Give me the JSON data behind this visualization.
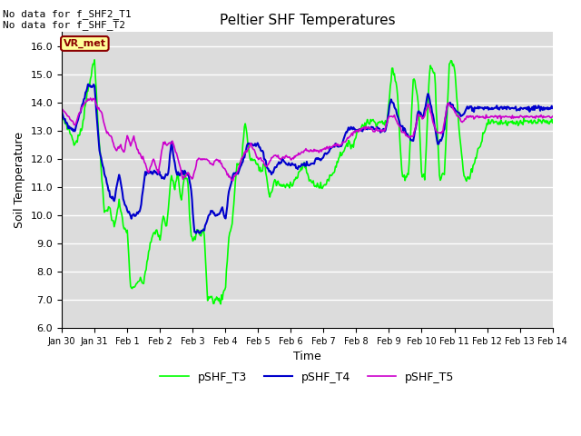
{
  "title": "Peltier SHF Temperatures",
  "xlabel": "Time",
  "ylabel": "Soil Temperature",
  "text_top_left": "No data for f_SHF2_T1\nNo data for f_SHF_T2",
  "annotation_label": "VR_met",
  "ylim": [
    6.0,
    16.5
  ],
  "yticks": [
    6.0,
    7.0,
    8.0,
    9.0,
    10.0,
    11.0,
    12.0,
    13.0,
    14.0,
    15.0,
    16.0
  ],
  "xtick_labels": [
    "Jan 30",
    "Jan 31",
    "Feb 1",
    "Feb 2",
    "Feb 3",
    "Feb 4",
    "Feb 5",
    "Feb 6",
    "Feb 7",
    "Feb 8",
    "Feb 9",
    "Feb 10",
    "Feb 11",
    "Feb 12",
    "Feb 13",
    "Feb 14"
  ],
  "legend_entries": [
    "pSHF_T3",
    "pSHF_T4",
    "pSHF_T5"
  ],
  "colors": {
    "T3": "#00FF00",
    "T4": "#0000CC",
    "T5": "#CC00CC"
  },
  "bg_color": "#DCDCDC",
  "annotation_bg": "#FFFF99",
  "annotation_border": "#8B0000",
  "annotation_text_color": "#8B0000",
  "t3_waypoints": [
    [
      0.0,
      13.5
    ],
    [
      0.2,
      13.1
    ],
    [
      0.4,
      12.5
    ],
    [
      0.6,
      13.0
    ],
    [
      0.8,
      14.5
    ],
    [
      1.0,
      15.5
    ],
    [
      1.15,
      12.5
    ],
    [
      1.3,
      10.1
    ],
    [
      1.45,
      10.3
    ],
    [
      1.6,
      9.6
    ],
    [
      1.75,
      10.5
    ],
    [
      1.9,
      9.5
    ],
    [
      2.0,
      9.5
    ],
    [
      2.1,
      7.5
    ],
    [
      2.2,
      7.35
    ],
    [
      2.35,
      7.7
    ],
    [
      2.5,
      7.6
    ],
    [
      2.6,
      8.3
    ],
    [
      2.75,
      9.2
    ],
    [
      2.9,
      9.5
    ],
    [
      3.0,
      9.1
    ],
    [
      3.1,
      10.0
    ],
    [
      3.2,
      9.5
    ],
    [
      3.35,
      11.5
    ],
    [
      3.45,
      11.0
    ],
    [
      3.55,
      11.5
    ],
    [
      3.65,
      10.5
    ],
    [
      3.75,
      11.5
    ],
    [
      3.85,
      11.2
    ],
    [
      3.95,
      9.2
    ],
    [
      4.05,
      9.1
    ],
    [
      4.15,
      9.5
    ],
    [
      4.25,
      9.3
    ],
    [
      4.35,
      9.5
    ],
    [
      4.45,
      7.05
    ],
    [
      4.55,
      7.1
    ],
    [
      4.65,
      6.95
    ],
    [
      4.75,
      7.05
    ],
    [
      4.85,
      6.95
    ],
    [
      5.0,
      7.4
    ],
    [
      5.1,
      9.2
    ],
    [
      5.2,
      9.6
    ],
    [
      5.35,
      11.8
    ],
    [
      5.5,
      11.9
    ],
    [
      5.6,
      13.4
    ],
    [
      5.75,
      12.0
    ],
    [
      5.9,
      11.9
    ],
    [
      6.0,
      11.8
    ],
    [
      6.1,
      11.5
    ],
    [
      6.2,
      11.9
    ],
    [
      6.35,
      10.6
    ],
    [
      6.5,
      11.2
    ],
    [
      6.65,
      11.1
    ],
    [
      6.8,
      11.0
    ],
    [
      6.95,
      11.1
    ],
    [
      7.1,
      11.2
    ],
    [
      7.25,
      11.5
    ],
    [
      7.4,
      11.8
    ],
    [
      7.5,
      11.5
    ],
    [
      7.6,
      11.2
    ],
    [
      7.75,
      11.1
    ],
    [
      7.9,
      11.0
    ],
    [
      8.0,
      11.0
    ],
    [
      8.15,
      11.3
    ],
    [
      8.3,
      11.5
    ],
    [
      8.45,
      12.0
    ],
    [
      8.6,
      12.3
    ],
    [
      8.75,
      12.5
    ],
    [
      8.9,
      12.5
    ],
    [
      9.05,
      13.0
    ],
    [
      9.2,
      13.2
    ],
    [
      9.35,
      13.3
    ],
    [
      9.5,
      13.35
    ],
    [
      9.65,
      13.3
    ],
    [
      9.8,
      13.3
    ],
    [
      9.95,
      13.3
    ],
    [
      10.1,
      15.3
    ],
    [
      10.25,
      14.5
    ],
    [
      10.4,
      11.4
    ],
    [
      10.5,
      11.4
    ],
    [
      10.6,
      11.5
    ],
    [
      10.75,
      15.0
    ],
    [
      10.9,
      14.0
    ],
    [
      11.0,
      11.4
    ],
    [
      11.1,
      11.3
    ],
    [
      11.25,
      15.4
    ],
    [
      11.4,
      15.0
    ],
    [
      11.55,
      11.3
    ],
    [
      11.7,
      11.5
    ],
    [
      11.85,
      15.5
    ],
    [
      12.0,
      15.3
    ],
    [
      12.15,
      13.0
    ],
    [
      12.3,
      11.3
    ],
    [
      12.45,
      11.3
    ],
    [
      13.0,
      13.3
    ],
    [
      15.0,
      13.3
    ]
  ],
  "t4_waypoints": [
    [
      0.0,
      13.7
    ],
    [
      0.2,
      13.1
    ],
    [
      0.4,
      13.0
    ],
    [
      0.6,
      13.8
    ],
    [
      0.8,
      14.6
    ],
    [
      1.0,
      14.6
    ],
    [
      1.15,
      12.3
    ],
    [
      1.3,
      11.5
    ],
    [
      1.45,
      10.8
    ],
    [
      1.6,
      10.5
    ],
    [
      1.75,
      11.5
    ],
    [
      1.9,
      10.5
    ],
    [
      2.0,
      10.2
    ],
    [
      2.1,
      10.0
    ],
    [
      2.25,
      10.0
    ],
    [
      2.4,
      10.2
    ],
    [
      2.55,
      11.5
    ],
    [
      2.7,
      11.5
    ],
    [
      2.85,
      11.5
    ],
    [
      3.0,
      11.5
    ],
    [
      3.1,
      11.3
    ],
    [
      3.25,
      11.5
    ],
    [
      3.35,
      12.6
    ],
    [
      3.5,
      11.5
    ],
    [
      3.6,
      11.5
    ],
    [
      3.7,
      11.5
    ],
    [
      3.85,
      11.5
    ],
    [
      3.95,
      11.0
    ],
    [
      4.05,
      9.4
    ],
    [
      4.2,
      9.4
    ],
    [
      4.35,
      9.5
    ],
    [
      4.5,
      10.0
    ],
    [
      4.6,
      10.2
    ],
    [
      4.7,
      10.0
    ],
    [
      4.8,
      10.0
    ],
    [
      4.9,
      10.3
    ],
    [
      5.0,
      9.8
    ],
    [
      5.1,
      10.8
    ],
    [
      5.25,
      11.5
    ],
    [
      5.4,
      11.5
    ],
    [
      5.55,
      12.0
    ],
    [
      5.7,
      12.6
    ],
    [
      5.85,
      12.5
    ],
    [
      6.0,
      12.5
    ],
    [
      6.15,
      12.2
    ],
    [
      6.3,
      11.6
    ],
    [
      6.45,
      11.5
    ],
    [
      6.6,
      11.8
    ],
    [
      6.75,
      12.0
    ],
    [
      6.9,
      11.8
    ],
    [
      7.05,
      11.8
    ],
    [
      7.2,
      11.7
    ],
    [
      7.35,
      11.8
    ],
    [
      7.5,
      11.8
    ],
    [
      7.65,
      11.8
    ],
    [
      7.8,
      12.0
    ],
    [
      7.95,
      12.0
    ],
    [
      8.1,
      12.2
    ],
    [
      8.25,
      12.4
    ],
    [
      8.4,
      12.5
    ],
    [
      8.55,
      12.4
    ],
    [
      8.7,
      13.0
    ],
    [
      8.85,
      13.1
    ],
    [
      9.0,
      13.0
    ],
    [
      9.15,
      13.0
    ],
    [
      9.3,
      13.1
    ],
    [
      9.45,
      13.1
    ],
    [
      9.6,
      13.05
    ],
    [
      9.75,
      13.0
    ],
    [
      9.9,
      13.0
    ],
    [
      10.05,
      14.1
    ],
    [
      10.2,
      13.8
    ],
    [
      10.35,
      13.2
    ],
    [
      10.5,
      13.0
    ],
    [
      10.65,
      12.7
    ],
    [
      10.75,
      12.6
    ],
    [
      10.9,
      13.7
    ],
    [
      11.05,
      13.5
    ],
    [
      11.2,
      14.4
    ],
    [
      11.35,
      13.5
    ],
    [
      11.5,
      12.5
    ],
    [
      11.65,
      12.8
    ],
    [
      11.8,
      14.0
    ],
    [
      11.95,
      13.9
    ],
    [
      12.1,
      13.7
    ],
    [
      12.25,
      13.5
    ],
    [
      12.4,
      13.8
    ],
    [
      15.0,
      13.8
    ]
  ],
  "t5_waypoints": [
    [
      0.0,
      13.8
    ],
    [
      0.2,
      13.5
    ],
    [
      0.4,
      13.2
    ],
    [
      0.6,
      13.8
    ],
    [
      0.8,
      14.1
    ],
    [
      1.0,
      14.1
    ],
    [
      1.1,
      13.8
    ],
    [
      1.2,
      13.7
    ],
    [
      1.35,
      13.0
    ],
    [
      1.5,
      12.8
    ],
    [
      1.65,
      12.3
    ],
    [
      1.8,
      12.5
    ],
    [
      1.9,
      12.2
    ],
    [
      2.0,
      12.8
    ],
    [
      2.1,
      12.5
    ],
    [
      2.2,
      12.8
    ],
    [
      2.35,
      12.2
    ],
    [
      2.5,
      12.0
    ],
    [
      2.65,
      11.5
    ],
    [
      2.8,
      12.0
    ],
    [
      2.95,
      11.5
    ],
    [
      3.1,
      12.6
    ],
    [
      3.25,
      12.5
    ],
    [
      3.4,
      12.6
    ],
    [
      3.55,
      12.0
    ],
    [
      3.7,
      11.3
    ],
    [
      3.85,
      11.5
    ],
    [
      4.0,
      11.3
    ],
    [
      4.15,
      12.0
    ],
    [
      4.3,
      12.0
    ],
    [
      4.45,
      12.0
    ],
    [
      4.6,
      11.8
    ],
    [
      4.75,
      12.0
    ],
    [
      4.9,
      11.8
    ],
    [
      5.05,
      11.5
    ],
    [
      5.2,
      11.2
    ],
    [
      5.35,
      11.5
    ],
    [
      5.5,
      12.0
    ],
    [
      5.65,
      12.3
    ],
    [
      5.8,
      12.5
    ],
    [
      5.95,
      12.1
    ],
    [
      6.1,
      12.0
    ],
    [
      6.25,
      11.7
    ],
    [
      6.4,
      12.0
    ],
    [
      6.55,
      12.1
    ],
    [
      6.7,
      12.0
    ],
    [
      6.85,
      12.1
    ],
    [
      7.0,
      12.0
    ],
    [
      7.15,
      12.1
    ],
    [
      7.3,
      12.2
    ],
    [
      7.45,
      12.3
    ],
    [
      7.6,
      12.3
    ],
    [
      7.75,
      12.3
    ],
    [
      7.9,
      12.3
    ],
    [
      8.05,
      12.4
    ],
    [
      8.2,
      12.4
    ],
    [
      8.35,
      12.5
    ],
    [
      8.5,
      12.5
    ],
    [
      8.65,
      12.6
    ],
    [
      8.8,
      12.8
    ],
    [
      8.95,
      13.0
    ],
    [
      9.1,
      13.0
    ],
    [
      9.25,
      13.1
    ],
    [
      9.4,
      13.1
    ],
    [
      9.55,
      13.0
    ],
    [
      9.7,
      13.0
    ],
    [
      9.85,
      13.0
    ],
    [
      10.0,
      13.5
    ],
    [
      10.15,
      13.5
    ],
    [
      10.3,
      13.2
    ],
    [
      10.45,
      12.9
    ],
    [
      10.6,
      12.8
    ],
    [
      10.75,
      12.8
    ],
    [
      10.9,
      13.6
    ],
    [
      11.05,
      13.4
    ],
    [
      11.2,
      14.0
    ],
    [
      11.35,
      13.3
    ],
    [
      11.5,
      12.9
    ],
    [
      11.65,
      13.0
    ],
    [
      11.8,
      14.0
    ],
    [
      11.95,
      13.8
    ],
    [
      12.1,
      13.5
    ],
    [
      12.25,
      13.3
    ],
    [
      12.4,
      13.5
    ],
    [
      15.0,
      13.5
    ]
  ]
}
